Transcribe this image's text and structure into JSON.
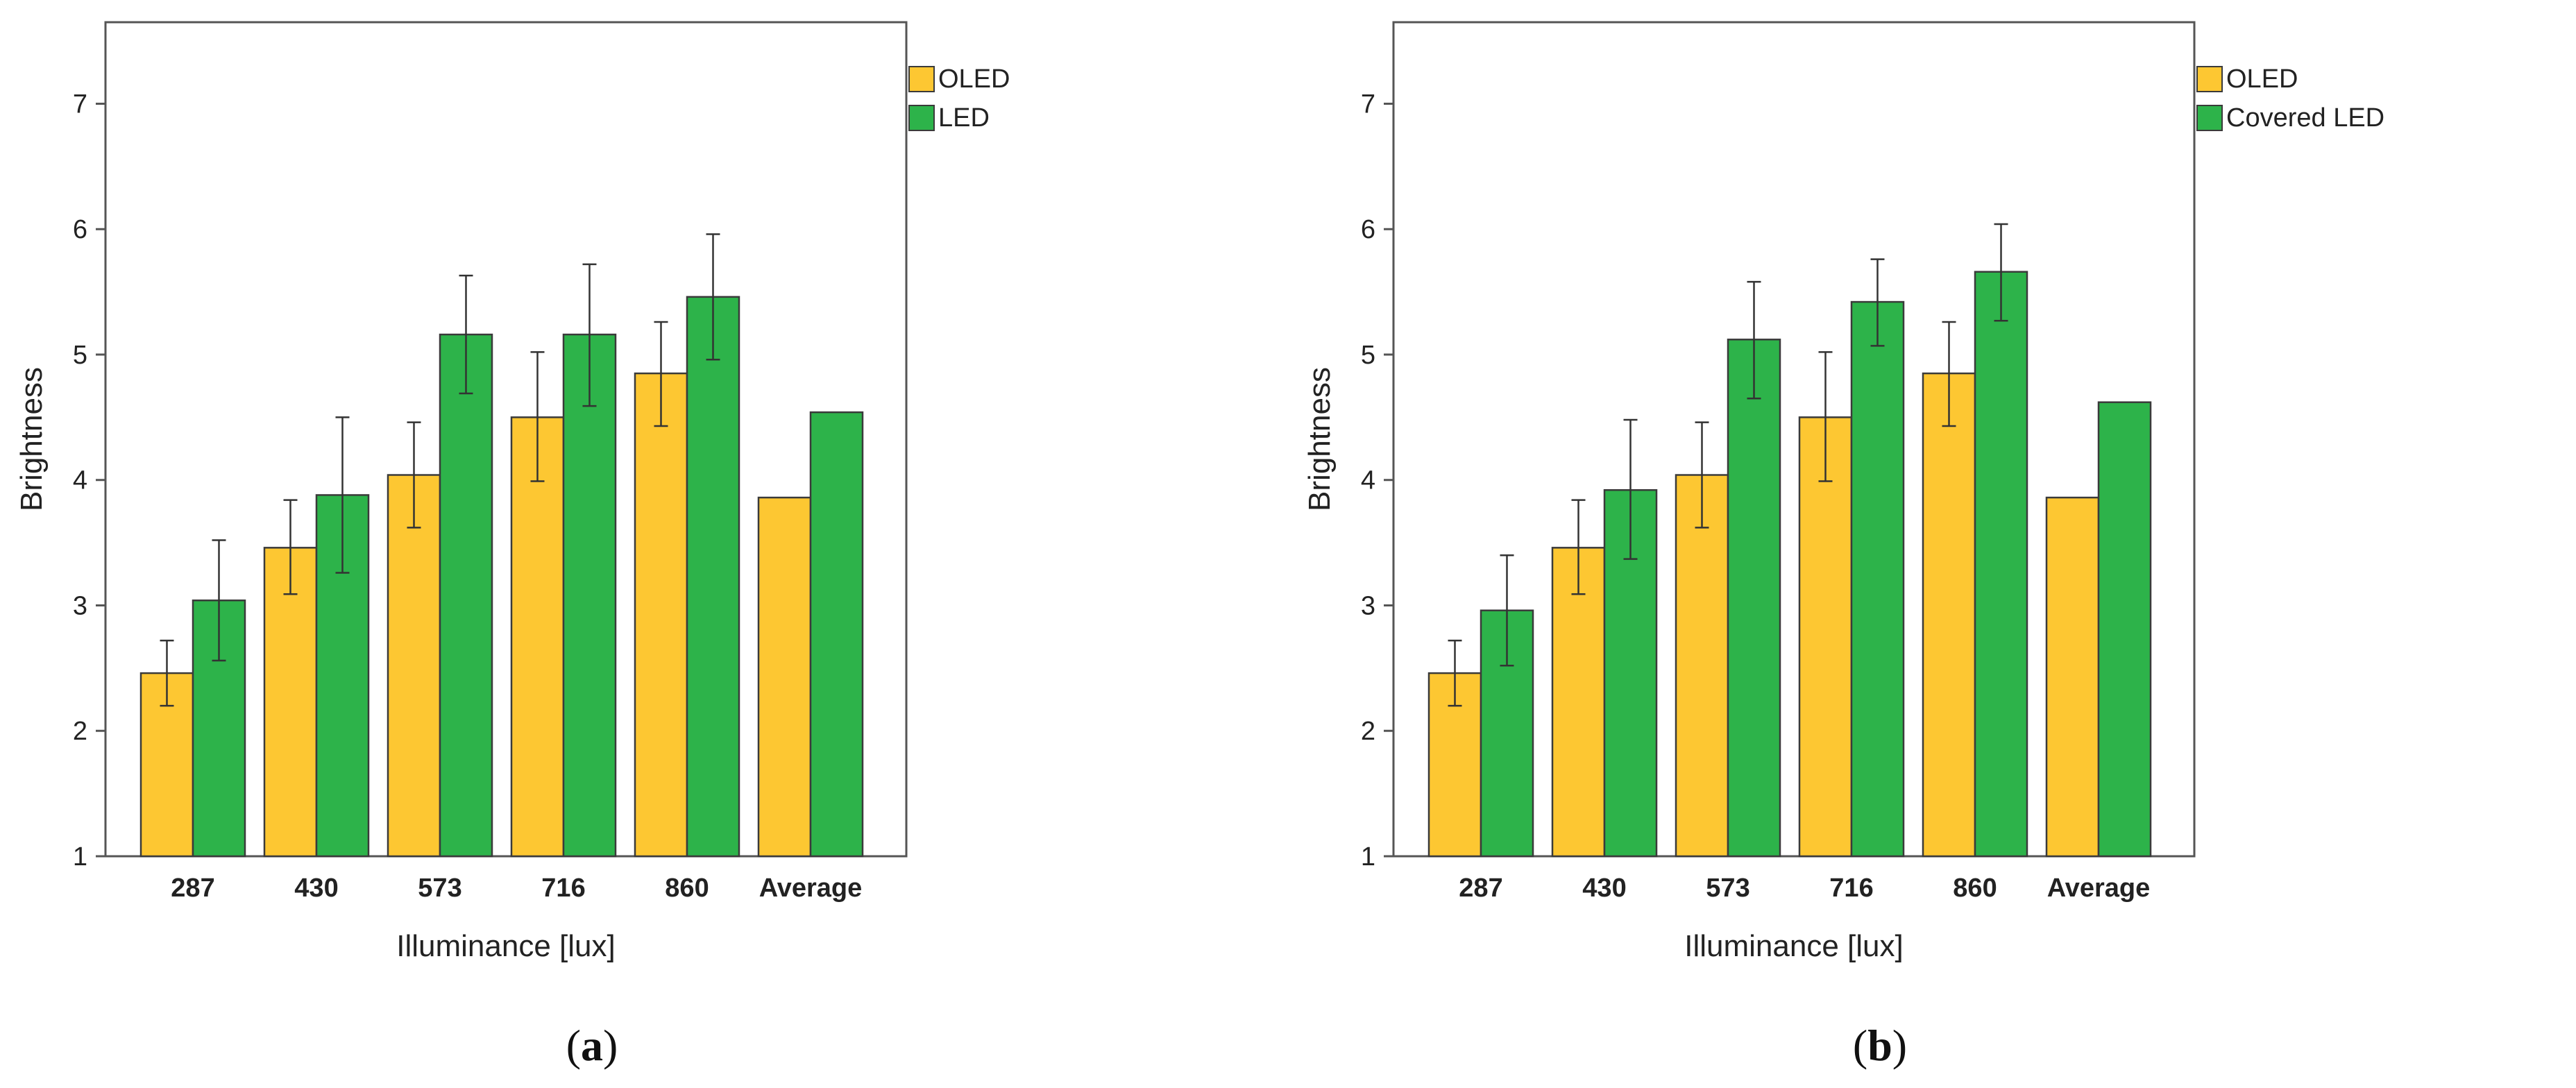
{
  "colors": {
    "oled": "#fdc732",
    "led": "#2db34a",
    "axis": "#555555",
    "text": "#222222",
    "error_bar": "#333333"
  },
  "chart_data": [
    {
      "type": "bar",
      "panel_label": "(a)",
      "panel_letter": "a",
      "xlabel": "Illuminance [lux]",
      "ylabel": "Brightness",
      "ylim": [
        1,
        7.65
      ],
      "yticks": [
        1,
        2,
        3,
        4,
        5,
        6,
        7
      ],
      "legend_position": "top-right, outside plot",
      "categories": [
        "287",
        "430",
        "573",
        "716",
        "860",
        "Average"
      ],
      "series": [
        {
          "name": "OLED",
          "color_key": "oled",
          "values": [
            2.46,
            3.46,
            4.04,
            4.5,
            4.85,
            3.86
          ],
          "error_low": [
            2.2,
            3.09,
            3.62,
            3.99,
            4.43,
            null
          ],
          "error_high": [
            2.72,
            3.84,
            4.46,
            5.02,
            5.26,
            null
          ]
        },
        {
          "name": "LED",
          "color_key": "led",
          "values": [
            3.04,
            3.88,
            5.16,
            5.16,
            5.46,
            4.54
          ],
          "error_low": [
            2.56,
            3.26,
            4.69,
            4.59,
            4.96,
            null
          ],
          "error_high": [
            3.52,
            4.5,
            5.63,
            5.72,
            5.96,
            null
          ]
        }
      ]
    },
    {
      "type": "bar",
      "panel_label": "(b)",
      "panel_letter": "b",
      "xlabel": "Illuminance [lux]",
      "ylabel": "Brightness",
      "ylim": [
        1,
        7.65
      ],
      "yticks": [
        1,
        2,
        3,
        4,
        5,
        6,
        7
      ],
      "legend_position": "top-right, outside plot",
      "categories": [
        "287",
        "430",
        "573",
        "716",
        "860",
        "Average"
      ],
      "series": [
        {
          "name": "OLED",
          "color_key": "oled",
          "values": [
            2.46,
            3.46,
            4.04,
            4.5,
            4.85,
            3.86
          ],
          "error_low": [
            2.2,
            3.09,
            3.62,
            3.99,
            4.43,
            null
          ],
          "error_high": [
            2.72,
            3.84,
            4.46,
            5.02,
            5.26,
            null
          ]
        },
        {
          "name": "Covered LED",
          "color_key": "led",
          "values": [
            2.96,
            3.92,
            5.12,
            5.42,
            5.66,
            4.62
          ],
          "error_low": [
            2.52,
            3.37,
            4.65,
            5.07,
            5.27,
            null
          ],
          "error_high": [
            3.4,
            4.48,
            5.58,
            5.76,
            6.04,
            null
          ]
        }
      ]
    }
  ]
}
